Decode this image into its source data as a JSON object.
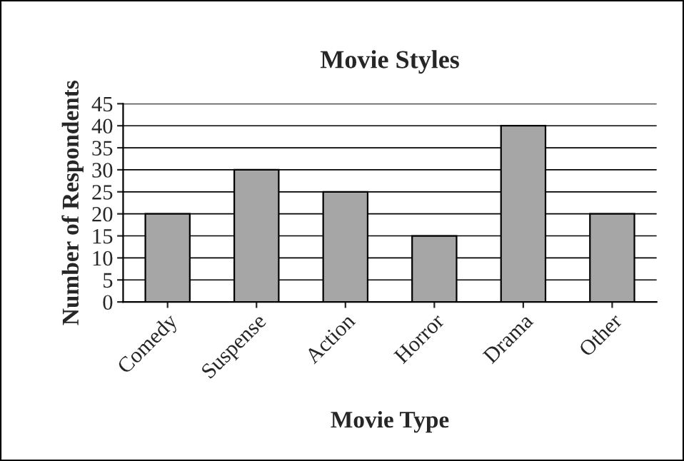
{
  "chart_data": {
    "type": "bar",
    "title": "Movie Styles",
    "xlabel": "Movie Type",
    "ylabel": "Number of Respondents",
    "categories": [
      "Comedy",
      "Suspense",
      "Action",
      "Horror",
      "Drama",
      "Other"
    ],
    "values": [
      20,
      30,
      25,
      15,
      40,
      20
    ],
    "color": "#a6a6a6",
    "ylim": [
      0,
      45
    ],
    "yticks": [
      0,
      5,
      10,
      15,
      20,
      25,
      30,
      35,
      40,
      45
    ],
    "grid": "y",
    "legend": false
  }
}
